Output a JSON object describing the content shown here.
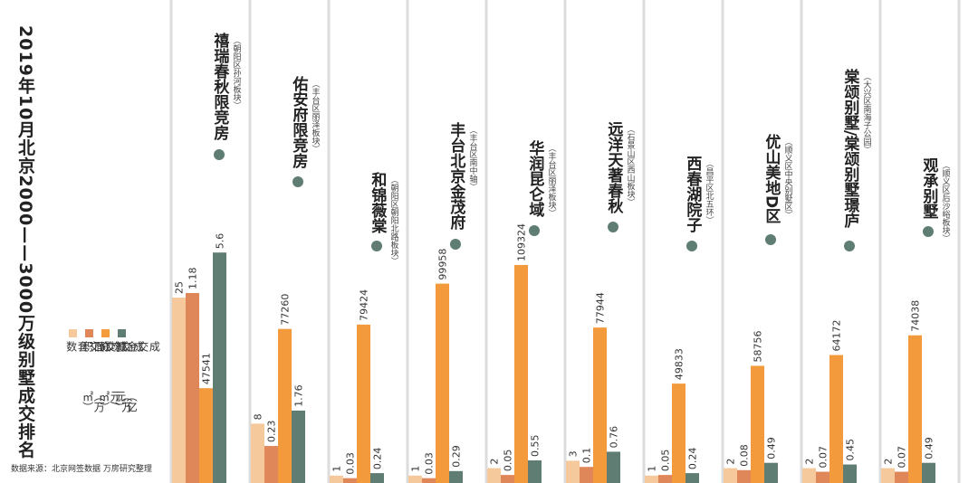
{
  "title": "2019年10月北京2000——3000万级别墅成交排名",
  "source": "数据来源：北京网签数据 万房研究整理",
  "colors": {
    "套数": "#f5c99b",
    "面积": "#e0875a",
    "均价": "#f39a3c",
    "金额": "#5f7d72",
    "grid": "#dcdcdc",
    "dot": "#5f7d72"
  },
  "legend": [
    {
      "label": "成交套数",
      "unit": ""
    },
    {
      "label": "成交面积",
      "unit": "（万㎡）"
    },
    {
      "label": "成交均价",
      "unit": "（万元/㎡）"
    },
    {
      "label": "成交金额",
      "unit": "（亿元）"
    }
  ],
  "chart_data": {
    "type": "bar",
    "title": "2019年10月北京2000——3000万级别墅成交排名",
    "categories": [
      "禧瑞春秋限竞房",
      "佑安府限竞房",
      "和锦薇棠",
      "丰台北京金茂府",
      "华润昆仑域",
      "远洋天著春秋",
      "西春湖院子",
      "优山美地D区",
      "棠颂别墅/棠颂别墅璟庐",
      "观承别墅"
    ],
    "districts": [
      "（朝阳区孙河板块）",
      "（丰台区丽泽板块）",
      "（朝阳区朝阳北路板块）",
      "（丰台区南中轴）",
      "（丰台区丽泽板块）",
      "（石景山区西山板块）",
      "（昌平区北五环）",
      "（顺义区中央别墅区）",
      "（大兴区南海子公园）",
      "（顺义区后沙峪板块）"
    ],
    "series": [
      {
        "name": "成交套数",
        "values": [
          25,
          8,
          1,
          1,
          2,
          3,
          1,
          2,
          2,
          2
        ],
        "labels": [
          "25",
          "8",
          "1",
          "1",
          "2",
          "3",
          "1",
          "2",
          "2",
          "2"
        ]
      },
      {
        "name": "成交面积",
        "values": [
          1.18,
          0.23,
          0.03,
          0.03,
          0.05,
          0.1,
          0.05,
          0.08,
          0.07,
          0.07
        ],
        "labels": [
          "1.18",
          "0.23",
          "0.03",
          "0.03",
          "0.05",
          "0.1",
          "0.05",
          "0.08",
          "0.07",
          "0.07"
        ]
      },
      {
        "name": "成交均价",
        "values": [
          47541,
          77260,
          79424,
          99958,
          109324,
          77944,
          49833,
          58756,
          64172,
          74038
        ],
        "labels": [
          "47541",
          "77260",
          "79424",
          "99958",
          "109324",
          "77944",
          "49833",
          "58756",
          "64172",
          "74038"
        ]
      },
      {
        "name": "成交金额",
        "values": [
          5.6,
          1.76,
          0.24,
          0.29,
          0.55,
          0.76,
          0.24,
          0.49,
          0.45,
          0.49
        ],
        "labels": [
          "5.6",
          "1.76",
          "0.24",
          "0.29",
          "0.55",
          "0.76",
          "0.24",
          "0.49",
          "0.45",
          "0.49"
        ]
      }
    ]
  }
}
